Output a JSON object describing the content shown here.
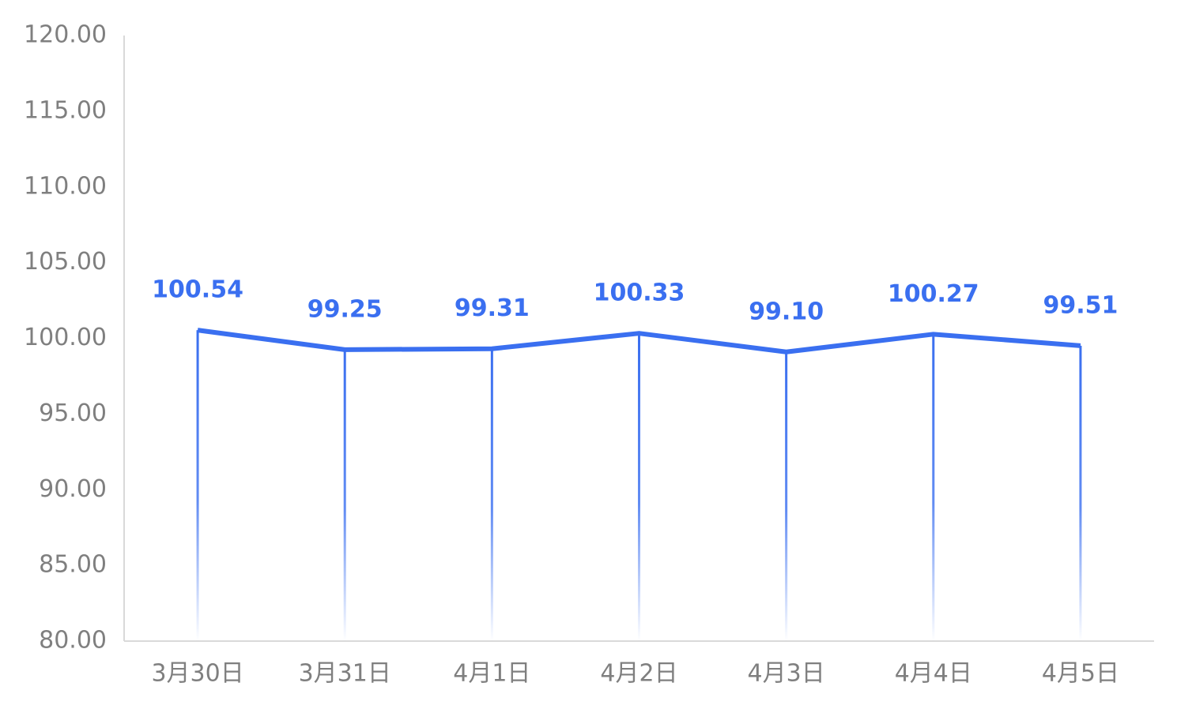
{
  "chart_data": {
    "type": "line",
    "categories": [
      "3月30日",
      "3月31日",
      "4月1日",
      "4月2日",
      "4月3日",
      "4月4日",
      "4月5日"
    ],
    "values": [
      100.54,
      99.25,
      99.31,
      100.33,
      99.1,
      100.27,
      99.51
    ],
    "value_labels": [
      "100.54",
      "99.25",
      "99.31",
      "100.33",
      "99.10",
      "100.27",
      "99.51"
    ],
    "color": "#3a6ff0",
    "ylim": [
      80,
      120
    ],
    "yticks": [
      {
        "value": 80,
        "label": "80.00"
      },
      {
        "value": 85,
        "label": "85.00"
      },
      {
        "value": 90,
        "label": "90.00"
      },
      {
        "value": 95,
        "label": "95.00"
      },
      {
        "value": 100,
        "label": "100.00"
      },
      {
        "value": 105,
        "label": "105.00"
      },
      {
        "value": 110,
        "label": "110.00"
      },
      {
        "value": 115,
        "label": "115.00"
      },
      {
        "value": 120,
        "label": "120.00"
      }
    ],
    "grid": false
  }
}
